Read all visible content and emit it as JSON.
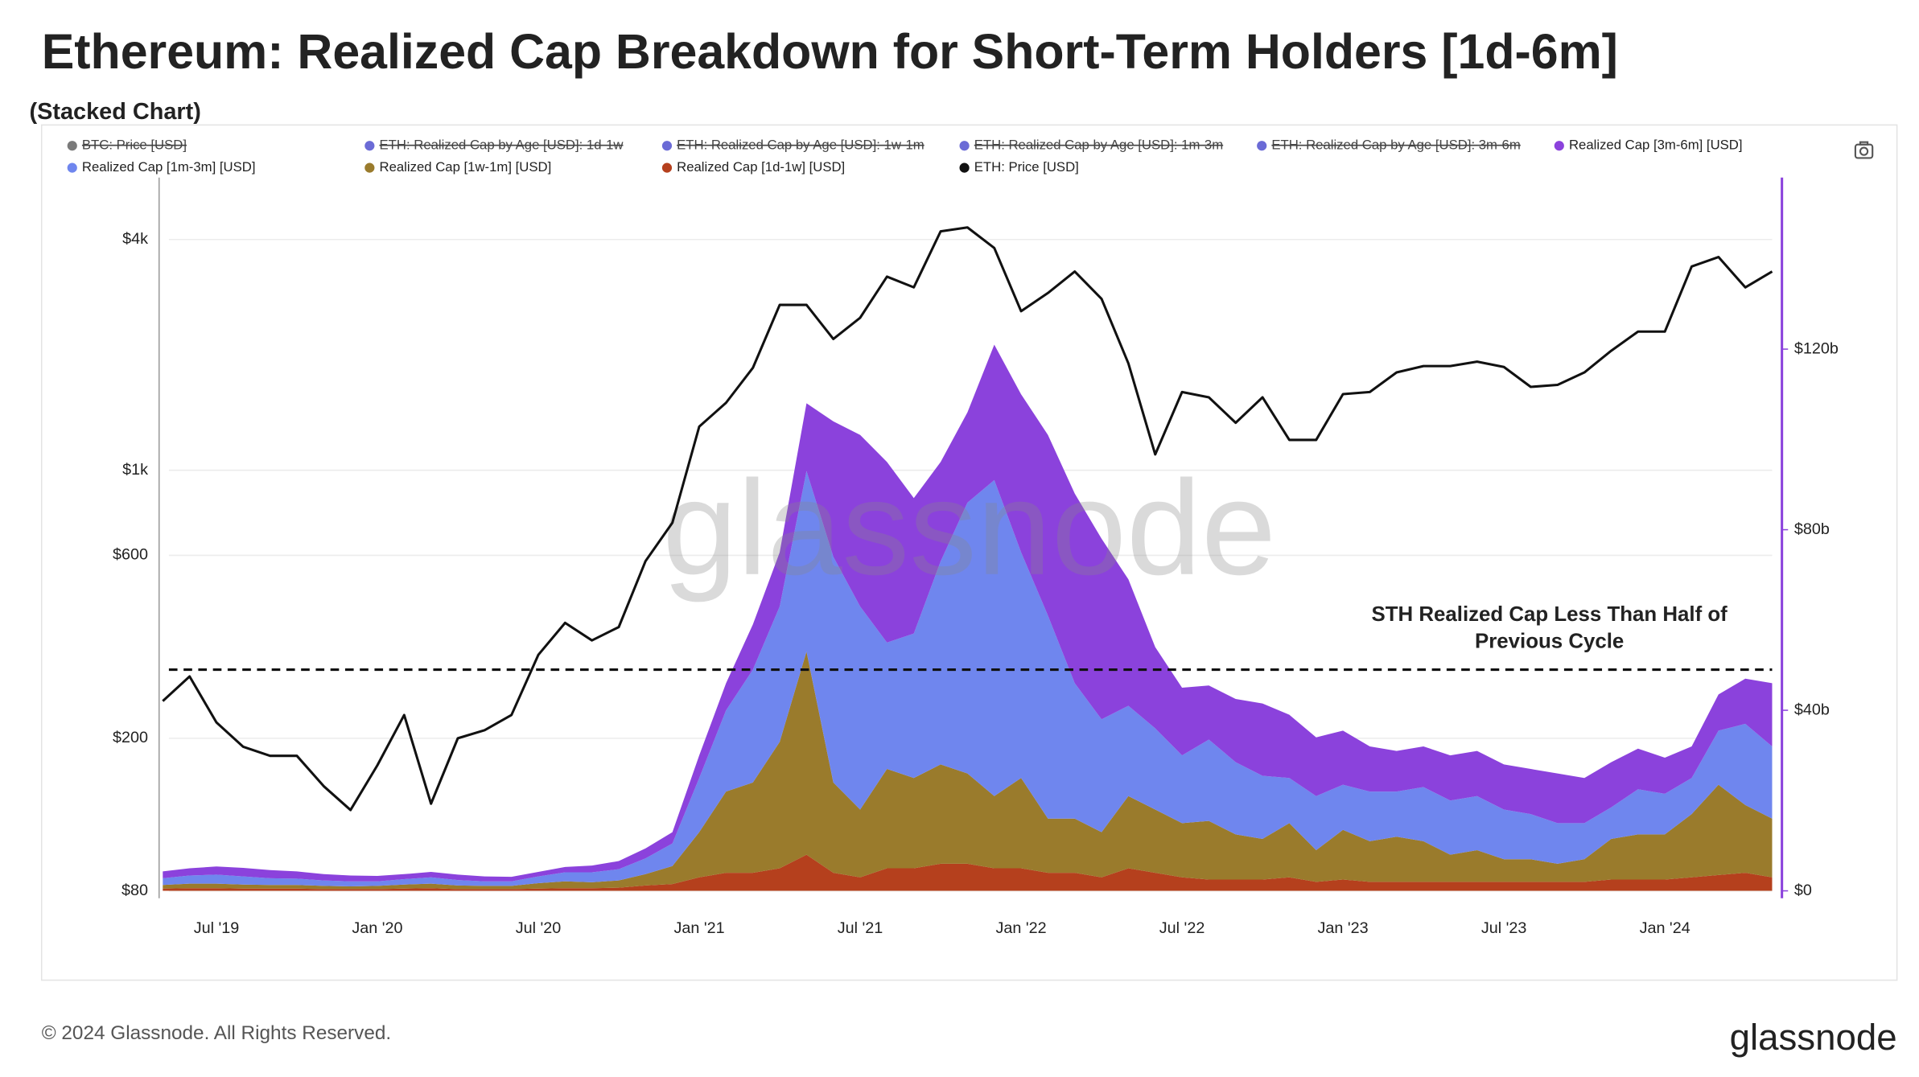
{
  "chart_data": {
    "type": "stacked_area_line",
    "title": "Ethereum: Realized Cap Breakdown for Short-Term Holders [1d-6m]",
    "subtitle": "(Stacked Chart)",
    "watermark": "glassnode",
    "footer": "© 2024 Glassnode. All Rights Reserved.",
    "logo": "glassnode",
    "annotation": [
      "STH Realized Cap Less Than Half of",
      "Previous Cycle"
    ],
    "reference_line": {
      "axis": "y2",
      "value": 49
    },
    "categories": [
      null,
      null,
      "Jul '19",
      null,
      null,
      null,
      null,
      null,
      "Jan '20",
      null,
      null,
      null,
      null,
      null,
      "Jul '20",
      null,
      null,
      null,
      null,
      null,
      "Jan '21",
      null,
      null,
      null,
      null,
      null,
      "Jul '21",
      null,
      null,
      null,
      null,
      null,
      "Jan '22",
      null,
      null,
      null,
      null,
      null,
      "Jul '22",
      null,
      null,
      null,
      null,
      null,
      "Jan '23",
      null,
      null,
      null,
      null,
      null,
      "Jul '23",
      null,
      null,
      null,
      null,
      null,
      "Jan '24",
      null,
      null,
      null,
      null
    ],
    "hidden_series": [
      {
        "name": "BTC: Price [USD]",
        "color": "#7a7a7a"
      },
      {
        "name": "ETH: Realized Cap by Age [USD]: 1d-1w",
        "color": "#6b6bd6"
      },
      {
        "name": "ETH: Realized Cap by Age [USD]: 1w-1m",
        "color": "#6b6bd6"
      },
      {
        "name": "ETH: Realized Cap by Age [USD]: 1m-3m",
        "color": "#6b6bd6"
      },
      {
        "name": "ETH: Realized Cap by Age [USD]: 3m-6m",
        "color": "#6b6bd6"
      }
    ],
    "series": [
      {
        "name": "Realized Cap [3m-6m] [USD]",
        "color": "#8b42dc",
        "axis": "y2",
        "stack": true,
        "values": [
          1.5,
          1.6,
          1.8,
          1.9,
          1.8,
          1.6,
          1.4,
          1.3,
          1.2,
          1.1,
          1.2,
          1.2,
          1.1,
          1,
          1,
          1.2,
          1.5,
          1.8,
          2.2,
          2.5,
          5,
          6,
          10,
          12,
          15,
          30,
          38,
          40,
          30,
          22,
          20,
          30,
          35,
          40,
          42,
          40,
          28,
          18,
          15,
          12,
          14,
          16,
          14,
          13,
          12,
          10,
          9,
          9,
          10,
          10,
          10,
          10,
          11,
          10,
          10,
          9,
          8,
          7,
          8,
          10,
          14
        ]
      },
      {
        "name": "Realized Cap [1m-3m] [USD]",
        "color": "#6f86ee",
        "axis": "y2",
        "stack": true,
        "values": [
          1.5,
          1.8,
          2,
          1.8,
          1.5,
          1.4,
          1.2,
          1.1,
          1,
          1.2,
          1.4,
          1.2,
          1,
          1,
          1.5,
          2,
          2.2,
          2.5,
          3.5,
          5,
          12,
          18,
          25,
          30,
          40,
          50,
          45,
          28,
          32,
          45,
          60,
          70,
          50,
          45,
          30,
          25,
          20,
          18,
          15,
          18,
          16,
          14,
          10,
          12,
          10,
          11,
          10,
          12,
          12,
          12,
          11,
          10,
          9,
          8,
          7,
          10,
          9,
          8,
          12,
          18,
          16
        ]
      },
      {
        "name": "Realized Cap [1w-1m] [USD]",
        "color": "#9a7b2c",
        "axis": "y2",
        "stack": true,
        "values": [
          0.8,
          1,
          1,
          0.9,
          0.8,
          0.8,
          0.7,
          0.6,
          0.7,
          0.9,
          1,
          0.8,
          0.7,
          0.7,
          1.2,
          1.5,
          1.3,
          1.6,
          2.5,
          4,
          10,
          18,
          20,
          28,
          45,
          20,
          15,
          22,
          20,
          22,
          20,
          16,
          20,
          12,
          12,
          10,
          16,
          14,
          12,
          13,
          10,
          9,
          12,
          7,
          11,
          9,
          10,
          9,
          6,
          7,
          5,
          5,
          4,
          5,
          9,
          10,
          10,
          14,
          20,
          15,
          13
        ]
      },
      {
        "name": "Realized Cap [1d-1w] [USD]",
        "color": "#b5401d",
        "axis": "y2",
        "stack": true,
        "values": [
          0.5,
          0.6,
          0.6,
          0.5,
          0.5,
          0.5,
          0.4,
          0.4,
          0.4,
          0.5,
          0.6,
          0.4,
          0.4,
          0.4,
          0.5,
          0.6,
          0.6,
          0.7,
          1.2,
          1.5,
          3,
          4,
          4,
          5,
          8,
          4,
          3,
          5,
          5,
          6,
          6,
          5,
          5,
          4,
          4,
          3,
          5,
          4,
          3,
          2.5,
          2.5,
          2.5,
          3,
          2,
          2.5,
          2,
          2,
          2,
          2,
          2,
          2,
          2,
          2,
          2,
          2.5,
          2.5,
          2.5,
          3,
          3.5,
          4,
          3
        ]
      },
      {
        "name": "ETH: Price [USD]",
        "color": "#111111",
        "axis": "y",
        "values": [
          250,
          290,
          220,
          190,
          180,
          180,
          150,
          130,
          170,
          230,
          135,
          200,
          210,
          230,
          330,
          400,
          360,
          390,
          580,
          730,
          1300,
          1500,
          1850,
          2700,
          2700,
          2200,
          2500,
          3200,
          3000,
          4200,
          4300,
          3800,
          2600,
          2900,
          3300,
          2800,
          1900,
          1100,
          1600,
          1550,
          1330,
          1550,
          1200,
          1200,
          1580,
          1600,
          1800,
          1870,
          1870,
          1920,
          1860,
          1650,
          1670,
          1800,
          2050,
          2300,
          2300,
          3400,
          3600,
          3000,
          3300
        ]
      }
    ],
    "log_y": true,
    "ylim": [
      80,
      5800
    ],
    "yticks": [
      {
        "value": 80,
        "label": "$80"
      },
      {
        "value": 200,
        "label": "$200"
      },
      {
        "value": 600,
        "label": "$600"
      },
      {
        "value": 1000,
        "label": "$1k"
      },
      {
        "value": 4000,
        "label": "$4k"
      }
    ],
    "y2lim": [
      0,
      158
    ],
    "y2ticks": [
      {
        "value": 0,
        "label": "$0"
      },
      {
        "value": 40,
        "label": "$40b"
      },
      {
        "value": 80,
        "label": "$80b"
      },
      {
        "value": 120,
        "label": "$120b"
      }
    ],
    "grid": true
  }
}
